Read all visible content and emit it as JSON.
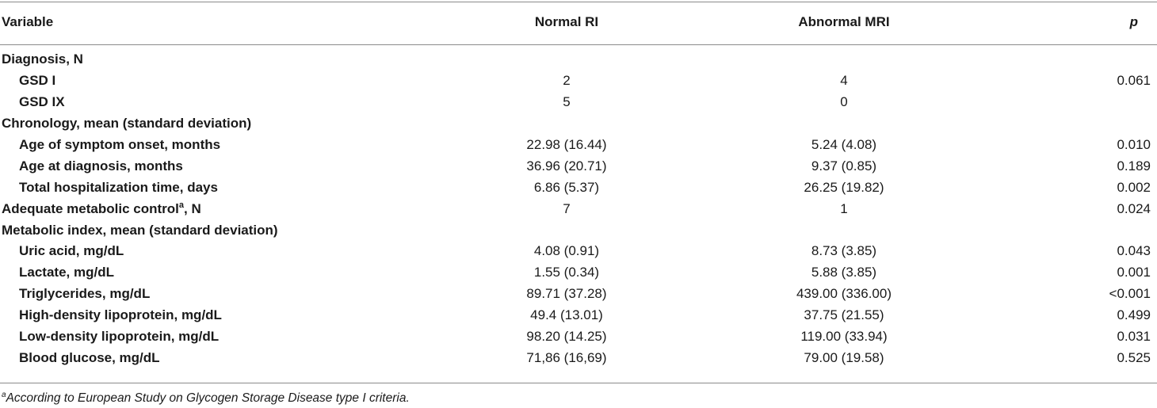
{
  "header": {
    "variable": "Variable",
    "normal": "Normal RI",
    "abnormal": "Abnormal MRI",
    "p": "p"
  },
  "rows": [
    {
      "label": "Diagnosis, N",
      "section": true,
      "normal": "",
      "abnormal": "",
      "p": ""
    },
    {
      "label": "GSD I",
      "section": false,
      "normal": "2",
      "abnormal": "4",
      "p": "0.061"
    },
    {
      "label": "GSD IX",
      "section": false,
      "normal": "5",
      "abnormal": "0",
      "p": ""
    },
    {
      "label": "Chronology, mean (standard deviation)",
      "section": true,
      "normal": "",
      "abnormal": "",
      "p": ""
    },
    {
      "label": "Age of symptom onset, months",
      "section": false,
      "normal": "22.98 (16.44)",
      "abnormal": "5.24 (4.08)",
      "p": "0.010"
    },
    {
      "label": "Age at diagnosis, months",
      "section": false,
      "normal": "36.96 (20.71)",
      "abnormal": "9.37 (0.85)",
      "p": "0.189"
    },
    {
      "label": "Total hospitalization time, days",
      "section": false,
      "normal": "6.86 (5.37)",
      "abnormal": "26.25 (19.82)",
      "p": "0.002"
    },
    {
      "label": "Adequate metabolic control",
      "sup": "a",
      "suffix": ", N",
      "section": true,
      "normal": "7",
      "abnormal": "1",
      "p": "0.024"
    },
    {
      "label": "Metabolic index, mean (standard deviation)",
      "section": true,
      "normal": "",
      "abnormal": "",
      "p": ""
    },
    {
      "label": "Uric acid, mg/dL",
      "section": false,
      "normal": "4.08 (0.91)",
      "abnormal": "8.73 (3.85)",
      "p": "0.043"
    },
    {
      "label": "Lactate, mg/dL",
      "section": false,
      "normal": "1.55 (0.34)",
      "abnormal": "5.88 (3.85)",
      "p": "0.001"
    },
    {
      "label": "Triglycerides, mg/dL",
      "section": false,
      "normal": "89.71 (37.28)",
      "abnormal": "439.00 (336.00)",
      "p": "<0.001"
    },
    {
      "label": "High-density lipoprotein, mg/dL",
      "section": false,
      "normal": "49.4 (13.01)",
      "abnormal": "37.75 (21.55)",
      "p": "0.499"
    },
    {
      "label": "Low-density lipoprotein, mg/dL",
      "section": false,
      "normal": "98.20 (14.25)",
      "abnormal": "119.00 (33.94)",
      "p": "0.031"
    },
    {
      "label": "Blood glucose, mg/dL",
      "section": false,
      "normal": "71,86 (16,69)",
      "abnormal": "79.00 (19.58)",
      "p": "0.525"
    }
  ],
  "footnote": {
    "marker": "a",
    "text": "According to European Study on Glycogen Storage Disease type I criteria."
  }
}
